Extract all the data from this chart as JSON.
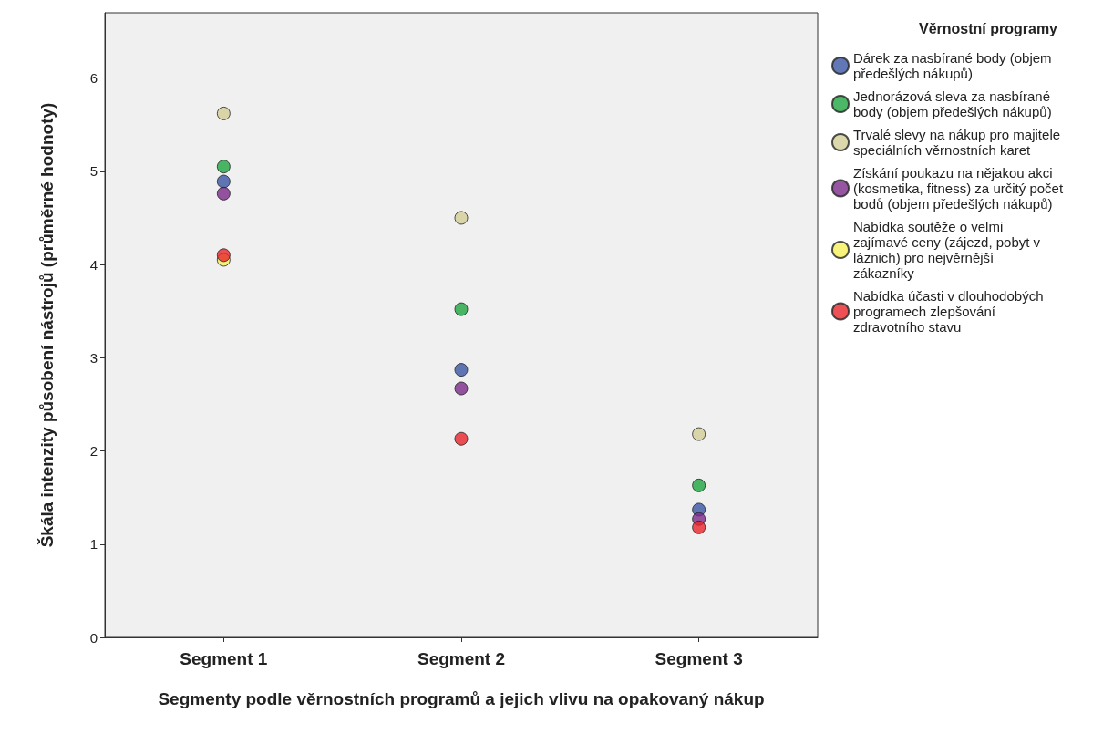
{
  "chart_data": {
    "type": "scatter",
    "xlabel": "Segmenty podle věrnostních programů a jejich vlivu na opakovaný nákup",
    "ylabel": "Škála intenzity působení nástrojů (průměrné hodnoty)",
    "legend_title": "Věrnostní programy",
    "categories": [
      "Segment 1",
      "Segment 2",
      "Segment 3"
    ],
    "series": [
      {
        "name": "Dárek za nasbírané body (objem předešlých nákupů)",
        "color": "#3a55a4",
        "values": [
          4.89,
          2.87,
          1.37
        ]
      },
      {
        "name": "Jednorázová sleva za nasbírané body (objem předešlých nákupů)",
        "color": "#1fa540",
        "values": [
          5.05,
          3.52,
          1.63
        ]
      },
      {
        "name": "Trvalé slevy na nákup pro majitele speciálních věrnostních karet",
        "color": "#d3ce97",
        "values": [
          5.62,
          4.5,
          2.18
        ]
      },
      {
        "name": "Získání poukazu na nějakou akci (kosmetika, fitness) za určitý počet bodů (objem předešlých nákupů)",
        "color": "#7b2a8a",
        "values": [
          4.76,
          2.67,
          1.27
        ]
      },
      {
        "name": "Nabídka soutěže o velmi zajímavé ceny (zájezd, pobyt v láznich) pro nejvěrnější zákazníky",
        "color": "#f5f05a",
        "values": [
          4.05,
          null,
          null
        ]
      },
      {
        "name": "Nabídka účasti v dlouhodobých programech zlepšování zdravotního stavu",
        "color": "#e8262b",
        "values": [
          4.1,
          2.13,
          1.18
        ]
      }
    ],
    "ylim": [
      0,
      6.7
    ],
    "yticks": [
      0,
      1,
      2,
      3,
      4,
      5,
      6
    ],
    "grid": false,
    "legend": "right",
    "marker": "circle"
  }
}
